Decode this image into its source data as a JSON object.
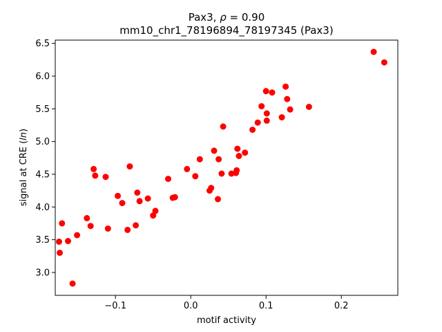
{
  "chart_data": {
    "type": "scatter",
    "title_line1_prefix": "Pax3, ",
    "title_line1_rho": "ρ",
    "title_line1_suffix": " = 0.90",
    "title_line2": "mm10_chr1_78196894_78197345 (Pax3)",
    "xlabel": "motif activity",
    "ylabel_prefix": "signal at CRE (",
    "ylabel_italic": "ln",
    "ylabel_suffix": ")",
    "xlim": [
      -0.18,
      0.275
    ],
    "ylim": [
      2.65,
      6.55
    ],
    "xticks": [
      -0.1,
      0.0,
      0.1,
      0.2
    ],
    "xtick_labels": [
      "−0.1",
      "0.0",
      "0.1",
      "0.2"
    ],
    "yticks": [
      3.0,
      3.5,
      4.0,
      4.5,
      5.0,
      5.5,
      6.0,
      6.5
    ],
    "ytick_labels": [
      "3.0",
      "3.5",
      "4.0",
      "4.5",
      "5.0",
      "5.5",
      "6.0",
      "6.5"
    ],
    "grid": false,
    "marker_color": "#ff0000",
    "points": [
      {
        "x": -0.175,
        "y": 3.47
      },
      {
        "x": -0.174,
        "y": 3.3
      },
      {
        "x": -0.171,
        "y": 3.75
      },
      {
        "x": -0.163,
        "y": 3.48
      },
      {
        "x": -0.157,
        "y": 2.83
      },
      {
        "x": -0.151,
        "y": 3.57
      },
      {
        "x": -0.138,
        "y": 3.83
      },
      {
        "x": -0.133,
        "y": 3.71
      },
      {
        "x": -0.129,
        "y": 4.58
      },
      {
        "x": -0.127,
        "y": 4.48
      },
      {
        "x": -0.113,
        "y": 4.46
      },
      {
        "x": -0.11,
        "y": 3.67
      },
      {
        "x": -0.097,
        "y": 4.17
      },
      {
        "x": -0.091,
        "y": 4.06
      },
      {
        "x": -0.084,
        "y": 3.65
      },
      {
        "x": -0.081,
        "y": 4.62
      },
      {
        "x": -0.073,
        "y": 3.72
      },
      {
        "x": -0.071,
        "y": 4.22
      },
      {
        "x": -0.068,
        "y": 4.09
      },
      {
        "x": -0.057,
        "y": 4.13
      },
      {
        "x": -0.05,
        "y": 3.87
      },
      {
        "x": -0.047,
        "y": 3.94
      },
      {
        "x": -0.03,
        "y": 4.43
      },
      {
        "x": -0.024,
        "y": 4.14
      },
      {
        "x": -0.021,
        "y": 4.15
      },
      {
        "x": -0.005,
        "y": 4.58
      },
      {
        "x": 0.006,
        "y": 4.47
      },
      {
        "x": 0.012,
        "y": 4.73
      },
      {
        "x": 0.025,
        "y": 4.25
      },
      {
        "x": 0.027,
        "y": 4.29
      },
      {
        "x": 0.031,
        "y": 4.86
      },
      {
        "x": 0.036,
        "y": 4.12
      },
      {
        "x": 0.037,
        "y": 4.73
      },
      {
        "x": 0.041,
        "y": 4.51
      },
      {
        "x": 0.043,
        "y": 5.23
      },
      {
        "x": 0.054,
        "y": 4.51
      },
      {
        "x": 0.06,
        "y": 4.52
      },
      {
        "x": 0.061,
        "y": 4.56
      },
      {
        "x": 0.062,
        "y": 4.89
      },
      {
        "x": 0.064,
        "y": 4.78
      },
      {
        "x": 0.072,
        "y": 4.83
      },
      {
        "x": 0.082,
        "y": 5.18
      },
      {
        "x": 0.089,
        "y": 5.29
      },
      {
        "x": 0.094,
        "y": 5.54
      },
      {
        "x": 0.1,
        "y": 5.77
      },
      {
        "x": 0.101,
        "y": 5.43
      },
      {
        "x": 0.101,
        "y": 5.32
      },
      {
        "x": 0.108,
        "y": 5.75
      },
      {
        "x": 0.121,
        "y": 5.37
      },
      {
        "x": 0.126,
        "y": 5.84
      },
      {
        "x": 0.128,
        "y": 5.65
      },
      {
        "x": 0.132,
        "y": 5.49
      },
      {
        "x": 0.157,
        "y": 5.53
      },
      {
        "x": 0.243,
        "y": 6.37
      },
      {
        "x": 0.257,
        "y": 6.21
      }
    ]
  }
}
